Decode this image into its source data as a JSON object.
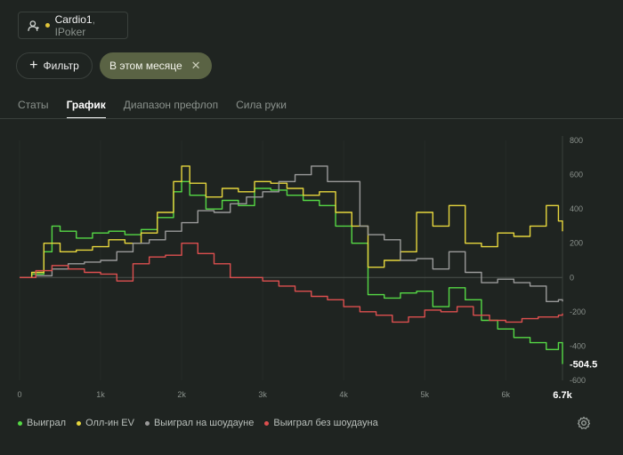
{
  "player": {
    "name": "Cardio1",
    "room": ", IPoker",
    "icon": "user-icon"
  },
  "filter_button": {
    "label": "Фильтр"
  },
  "period_chip": {
    "label": "В этом месяце"
  },
  "tabs": [
    {
      "label": "Статы",
      "active": false
    },
    {
      "label": "График",
      "active": true
    },
    {
      "label": "Диапазон префлоп",
      "active": false
    },
    {
      "label": "Сила руки",
      "active": false
    }
  ],
  "legend": [
    {
      "label": "Выиграл",
      "color": "#55d845"
    },
    {
      "label": "Олл-ин EV",
      "color": "#e6d63d"
    },
    {
      "label": "Выиграл на шоудауне",
      "color": "#9a9a9a"
    },
    {
      "label": "Выиграл без шоудауна",
      "color": "#dd4f4f"
    }
  ],
  "chart_data": {
    "type": "line",
    "x_ticks": [
      "0",
      "1k",
      "2k",
      "3k",
      "4k",
      "5k",
      "6k"
    ],
    "x_end_label": "6.7k",
    "x_max": 6700,
    "y_ticks": [
      800,
      600,
      400,
      200,
      0,
      -200,
      -400,
      -600
    ],
    "ylim": [
      -600,
      800
    ],
    "last_value_label": "-504.5",
    "series": [
      {
        "name": "Выиграл",
        "color": "#55d845",
        "x": [
          0,
          150,
          300,
          400,
          500,
          700,
          900,
          1100,
          1300,
          1500,
          1700,
          1900,
          2000,
          2100,
          2300,
          2500,
          2700,
          2900,
          3100,
          3300,
          3500,
          3700,
          3900,
          4100,
          4300,
          4400,
          4500,
          4700,
          4900,
          5100,
          5300,
          5500,
          5700,
          5900,
          6100,
          6300,
          6500,
          6650,
          6700
        ],
        "y": [
          0,
          20,
          150,
          300,
          270,
          230,
          260,
          270,
          250,
          280,
          350,
          500,
          560,
          480,
          400,
          450,
          420,
          520,
          510,
          480,
          450,
          420,
          300,
          200,
          -100,
          -100,
          -120,
          -90,
          -80,
          -170,
          -60,
          -130,
          -250,
          -300,
          -350,
          -380,
          -420,
          -380,
          -504.5
        ]
      },
      {
        "name": "Олл-ин EV",
        "color": "#e6d63d",
        "x": [
          0,
          150,
          300,
          500,
          700,
          900,
          1100,
          1300,
          1500,
          1700,
          1900,
          2000,
          2100,
          2300,
          2500,
          2700,
          2900,
          3100,
          3300,
          3500,
          3700,
          3900,
          4100,
          4300,
          4500,
          4700,
          4900,
          5100,
          5300,
          5500,
          5700,
          5900,
          6100,
          6300,
          6500,
          6650,
          6700
        ],
        "y": [
          0,
          30,
          200,
          150,
          160,
          180,
          220,
          200,
          260,
          380,
          560,
          650,
          550,
          470,
          520,
          500,
          560,
          550,
          520,
          480,
          500,
          380,
          300,
          60,
          100,
          150,
          380,
          300,
          420,
          200,
          180,
          260,
          240,
          300,
          420,
          330,
          270
        ]
      },
      {
        "name": "Выиграл на шоудауне",
        "color": "#9a9a9a",
        "x": [
          0,
          200,
          400,
          600,
          800,
          1000,
          1200,
          1400,
          1600,
          1800,
          2000,
          2200,
          2400,
          2600,
          2800,
          3000,
          3200,
          3400,
          3600,
          3800,
          4000,
          4200,
          4300,
          4500,
          4700,
          4900,
          5100,
          5300,
          5500,
          5700,
          5900,
          6100,
          6300,
          6500,
          6650,
          6700
        ],
        "y": [
          0,
          10,
          50,
          80,
          90,
          100,
          150,
          200,
          220,
          270,
          320,
          390,
          380,
          430,
          470,
          500,
          560,
          600,
          650,
          560,
          560,
          300,
          250,
          220,
          100,
          110,
          50,
          150,
          30,
          -30,
          -10,
          -30,
          -50,
          -140,
          -130,
          -140
        ]
      },
      {
        "name": "Выиграл без шоудауна",
        "color": "#dd4f4f",
        "x": [
          0,
          200,
          400,
          600,
          800,
          1000,
          1200,
          1400,
          1600,
          1800,
          2000,
          2200,
          2400,
          2600,
          2800,
          3000,
          3200,
          3400,
          3600,
          3800,
          4000,
          4200,
          4400,
          4600,
          4800,
          5000,
          5200,
          5400,
          5600,
          5800,
          6000,
          6200,
          6400,
          6650,
          6700
        ],
        "y": [
          0,
          40,
          70,
          50,
          30,
          20,
          -20,
          80,
          120,
          130,
          200,
          140,
          80,
          0,
          0,
          -20,
          -50,
          -80,
          -110,
          -130,
          -170,
          -200,
          -220,
          -260,
          -230,
          -190,
          -200,
          -170,
          -220,
          -250,
          -260,
          -240,
          -230,
          -220,
          -210
        ]
      }
    ]
  }
}
